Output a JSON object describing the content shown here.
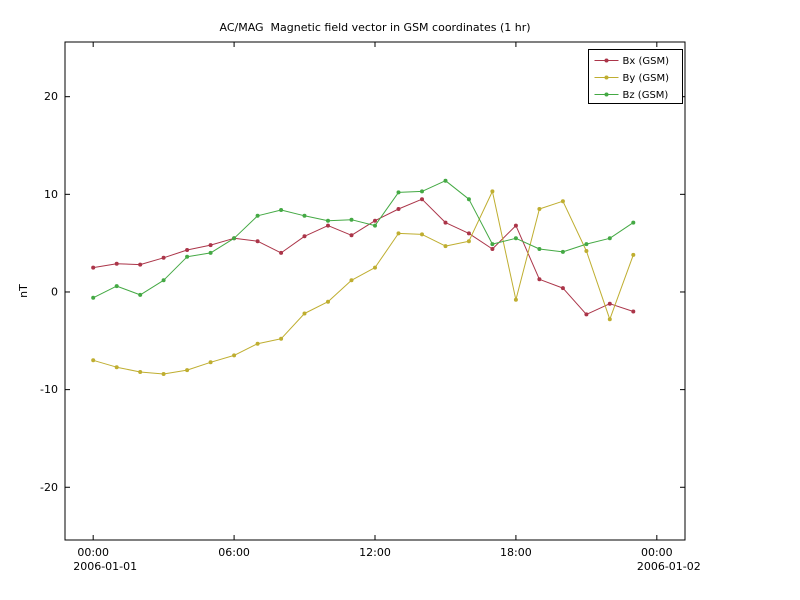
{
  "chart_data": {
    "type": "line",
    "title": "AC/MAG  Magnetic field vector in GSM coordinates (1 hr)",
    "ylabel": "nT",
    "xlabel": "",
    "grid": false,
    "legend_position": "upper right",
    "ylim": [
      -25.4,
      25.6
    ],
    "xlim_hours": [
      -1.2,
      25.2
    ],
    "yticks": [
      20,
      10,
      0,
      -10,
      -20
    ],
    "xticks": [
      {
        "hour": 0,
        "label": "00:00",
        "sub": "2006-01-01"
      },
      {
        "hour": 6,
        "label": "06:00",
        "sub": ""
      },
      {
        "hour": 12,
        "label": "12:00",
        "sub": ""
      },
      {
        "hour": 18,
        "label": "18:00",
        "sub": ""
      },
      {
        "hour": 24,
        "label": "00:00",
        "sub": "2006-01-02"
      }
    ],
    "x_hours": [
      0,
      1,
      2,
      3,
      4,
      5,
      6,
      7,
      8,
      9,
      10,
      11,
      12,
      13,
      14,
      15,
      16,
      17,
      18,
      19,
      20,
      21,
      22,
      23
    ],
    "series": [
      {
        "name": "Bx (GSM)",
        "color": "#ab3549",
        "values": [
          2.5,
          2.9,
          2.8,
          3.5,
          4.3,
          4.8,
          5.5,
          5.2,
          4.0,
          5.7,
          6.8,
          5.8,
          7.3,
          8.5,
          9.5,
          7.1,
          6.0,
          4.4,
          6.8,
          1.3,
          0.4,
          -2.3,
          -1.2,
          -2.0
        ]
      },
      {
        "name": "By (GSM)",
        "color": "#bfae30",
        "values": [
          -7.0,
          -7.7,
          -8.2,
          -8.4,
          -8.0,
          -7.2,
          -6.5,
          -5.3,
          -4.8,
          -2.2,
          -1.0,
          1.2,
          2.5,
          6.0,
          5.9,
          4.7,
          5.2,
          10.3,
          -0.8,
          8.5,
          9.3,
          4.2,
          -2.8,
          3.8
        ]
      },
      {
        "name": "Bz (GSM)",
        "color": "#44a944",
        "values": [
          -0.6,
          0.6,
          -0.3,
          1.2,
          3.6,
          4.0,
          5.5,
          7.8,
          8.4,
          7.8,
          7.3,
          7.4,
          6.8,
          10.2,
          10.3,
          11.4,
          9.5,
          4.9,
          5.5,
          4.4,
          4.1,
          4.9,
          5.5,
          7.1
        ]
      }
    ]
  },
  "frame": {
    "background": "#ffffff",
    "axis_color": "#000000"
  }
}
